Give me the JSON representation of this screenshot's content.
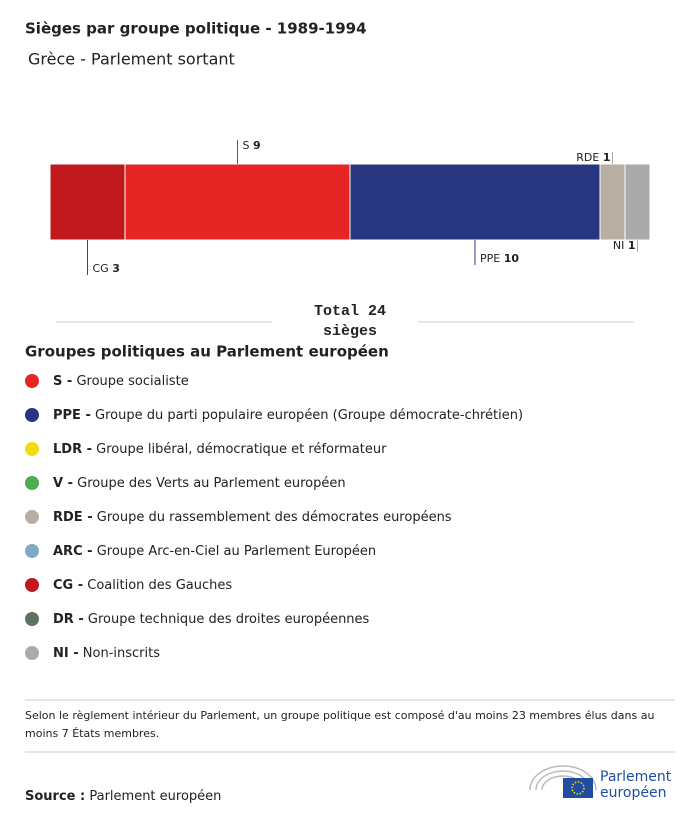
{
  "chart_data": {
    "type": "stacked-hbar",
    "title": "Sièges par groupe politique - 1989-1994",
    "subtitle": "Grèce - Parlement sortant",
    "series": [
      {
        "name": "CG",
        "value": 3,
        "color": "#c0191d"
      },
      {
        "name": "S",
        "value": 9,
        "color": "#e52624"
      },
      {
        "name": "PPE",
        "value": 10,
        "color": "#283680"
      },
      {
        "name": "RDE",
        "value": 1,
        "color": "#b6afa2"
      },
      {
        "name": "NI",
        "value": 1,
        "color": "#aaaaaa"
      }
    ],
    "xlim": [
      0,
      24
    ],
    "total_label": "Total",
    "total": 24,
    "total_unit": "sièges",
    "legend_title": "Groupes politiques au Parlement européen",
    "legend": [
      {
        "abbr": "S -",
        "label": "Groupe socialiste",
        "color": "#e52624"
      },
      {
        "abbr": "PPE -",
        "label": "Groupe du parti populaire européen (Groupe démocrate-chrétien)",
        "color": "#283680"
      },
      {
        "abbr": "LDR -",
        "label": "Groupe libéral, démocratique et réformateur",
        "color": "#f0dc0f"
      },
      {
        "abbr": "V -",
        "label": "Groupe des Verts au Parlement européen",
        "color": "#4cae4f"
      },
      {
        "abbr": "RDE -",
        "label": "Groupe du rassemblement des démocrates européens",
        "color": "#b6afa2"
      },
      {
        "abbr": "ARC -",
        "label": "Groupe Arc-en-Ciel au Parlement Européen",
        "color": "#82a9c3"
      },
      {
        "abbr": "CG -",
        "label": "Coalition des Gauches",
        "color": "#c0191d"
      },
      {
        "abbr": "DR -",
        "label": "Groupe technique des droites européennes",
        "color": "#5e7263"
      },
      {
        "abbr": "NI -",
        "label": "Non-inscrits",
        "color": "#aaaaaa"
      }
    ],
    "footnote": [
      "Selon le règlement intérieur du Parlement, un groupe politique est composé d'au moins 23 membres élus dans au",
      "moins 7 États membres."
    ],
    "source_label": "Source :",
    "source": "Parlement européen",
    "logo": [
      "Parlement",
      "européen"
    ]
  }
}
